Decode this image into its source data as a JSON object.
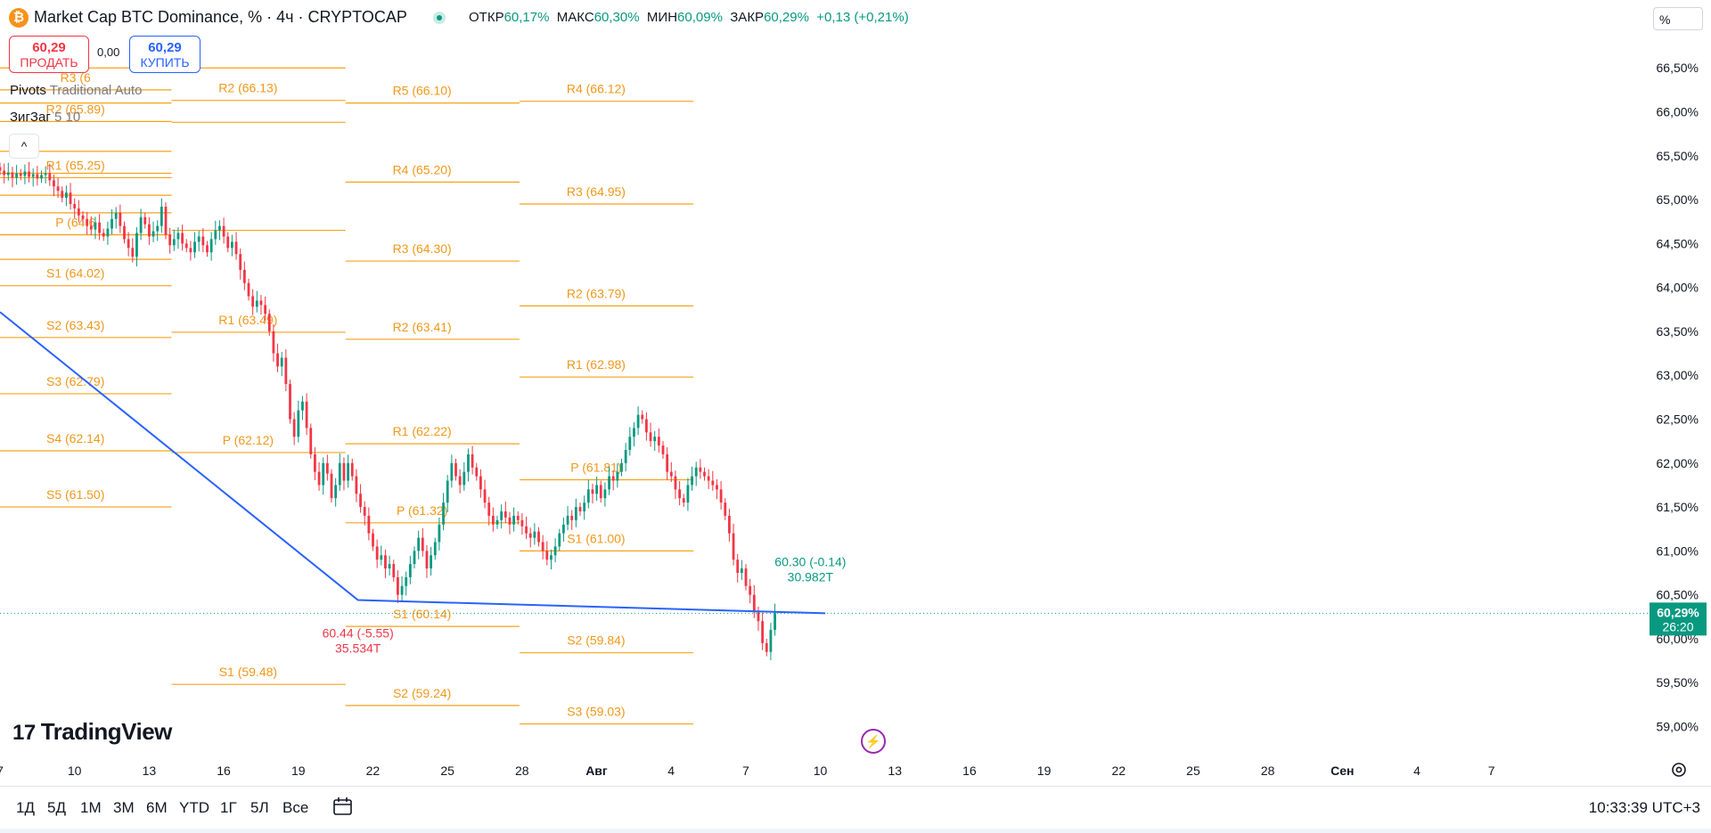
{
  "header": {
    "icon_letter": "₿",
    "title": "Market Cap BTC Dominance, % · 4ч · CRYPTOCAP",
    "ohlc": [
      {
        "label": "ОТКР",
        "value": "60,17%"
      },
      {
        "label": "МАКС",
        "value": "60,30%"
      },
      {
        "label": "МИН",
        "value": "60,09%"
      },
      {
        "label": "ЗАКР",
        "value": "60,29%"
      }
    ],
    "change": "+0,13 (+0,21%)",
    "scale_mode": "%"
  },
  "trade": {
    "sell_price": "60,29",
    "sell_label": "ПРОДАТЬ",
    "spread": "0,00",
    "buy_price": "60,29",
    "buy_label": "КУПИТЬ"
  },
  "indicators": {
    "pivots_name": "Pivots",
    "pivots_params": "Traditional Auto",
    "zigzag_name": "ЗигЗаг",
    "zigzag_params": "5 10",
    "collapse_icon": "^"
  },
  "logo": "TradingView",
  "timeframes": [
    "1Д",
    "5Д",
    "1М",
    "3М",
    "6М",
    "YTD",
    "1Г",
    "5Л",
    "Все"
  ],
  "clock": "10:33:39 UTC+3",
  "colors": {
    "up": "#089981",
    "down": "#f23645",
    "pivot": "#f7a21b",
    "pivot_text": "#f0981a",
    "zigzag": "#2962ff",
    "label_bg": "#089981"
  },
  "chart_data": {
    "type": "candlestick",
    "y_axis": {
      "ylim": [
        58.65,
        67.05
      ],
      "ticks": [
        59.0,
        59.5,
        60.0,
        60.5,
        61.0,
        61.5,
        62.0,
        62.5,
        63.0,
        63.5,
        64.0,
        64.5,
        65.0,
        65.5,
        66.0,
        66.5
      ],
      "tick_labels": [
        "59,00%",
        "59,50%",
        "60,00%",
        "60,50%",
        "61,00%",
        "61,50%",
        "62,00%",
        "62,50%",
        "63,00%",
        "63,50%",
        "64,00%",
        "64,50%",
        "65,00%",
        "65,50%",
        "66,00%",
        "66,50%"
      ]
    },
    "x_axis": {
      "unit": "day",
      "xlim": [
        7.0,
        73.5
      ],
      "ticks": [
        {
          "d": 7,
          "label": "7"
        },
        {
          "d": 10,
          "label": "10"
        },
        {
          "d": 13,
          "label": "13"
        },
        {
          "d": 16,
          "label": "16"
        },
        {
          "d": 19,
          "label": "19"
        },
        {
          "d": 22,
          "label": "22"
        },
        {
          "d": 25,
          "label": "25"
        },
        {
          "d": 28,
          "label": "28"
        },
        {
          "d": 31,
          "label": "Авг"
        },
        {
          "d": 34,
          "label": "4"
        },
        {
          "d": 37,
          "label": "7"
        },
        {
          "d": 40,
          "label": "10"
        },
        {
          "d": 43,
          "label": "13"
        },
        {
          "d": 46,
          "label": "16"
        },
        {
          "d": 49,
          "label": "19"
        },
        {
          "d": 52,
          "label": "22"
        },
        {
          "d": 55,
          "label": "25"
        },
        {
          "d": 58,
          "label": "28"
        },
        {
          "d": 61,
          "label": "Сен"
        },
        {
          "d": 64,
          "label": "4"
        },
        {
          "d": 67,
          "label": "7"
        }
      ]
    },
    "last_price": {
      "value": 60.29,
      "label": "60,29%",
      "countdown": "26:20"
    },
    "pivots": [
      {
        "x0": 7.0,
        "x1": 13.9,
        "levels": [
          {
            "t": "",
            "v": 66.5
          },
          {
            "t": "R3 (6",
            "v": 66.25
          },
          {
            "t": "",
            "v": 66.1
          },
          {
            "t": "R2 (65.89)",
            "v": 65.89
          },
          {
            "t": "",
            "v": 65.55
          },
          {
            "t": "",
            "v": 65.3
          },
          {
            "t": "R1 (65.25)",
            "v": 65.25
          },
          {
            "t": "",
            "v": 65.05
          },
          {
            "t": "",
            "v": 64.85
          },
          {
            "t": "",
            "v": 64.6
          },
          {
            "t": "P (64.6",
            "v": 64.6
          },
          {
            "t": "",
            "v": 64.32
          },
          {
            "t": "S1 (64.02)",
            "v": 64.02
          },
          {
            "t": "S2 (63.43)",
            "v": 63.43
          },
          {
            "t": "S3 (62.79)",
            "v": 62.79
          },
          {
            "t": "S4 (62.14)",
            "v": 62.14
          },
          {
            "t": "S5 (61.50)",
            "v": 61.5
          }
        ]
      },
      {
        "x0": 13.9,
        "x1": 20.9,
        "levels": [
          {
            "t": "",
            "v": 66.5
          },
          {
            "t": "R2 (66.13)",
            "v": 66.13
          },
          {
            "t": "",
            "v": 65.88
          },
          {
            "t": "",
            "v": 64.65
          },
          {
            "t": "R1 (63.49)",
            "v": 63.49
          },
          {
            "t": "P (62.12)",
            "v": 62.12
          },
          {
            "t": "S1 (59.48)",
            "v": 59.48
          }
        ]
      },
      {
        "x0": 20.9,
        "x1": 27.9,
        "levels": [
          {
            "t": "R5 (66.10)",
            "v": 66.1
          },
          {
            "t": "R4 (65.20)",
            "v": 65.2
          },
          {
            "t": "R3 (64.30)",
            "v": 64.3
          },
          {
            "t": "R2 (63.41)",
            "v": 63.41
          },
          {
            "t": "R1 (62.22)",
            "v": 62.22
          },
          {
            "t": "P (61.32)",
            "v": 61.32
          },
          {
            "t": "S1 (60.14)",
            "v": 60.14
          },
          {
            "t": "S2 (59.24)",
            "v": 59.24
          }
        ]
      },
      {
        "x0": 27.9,
        "x1": 34.9,
        "levels": [
          {
            "t": "R4 (66.12)",
            "v": 66.12
          },
          {
            "t": "R3 (64.95)",
            "v": 64.95
          },
          {
            "t": "R2 (63.79)",
            "v": 63.79
          },
          {
            "t": "R1 (62.98)",
            "v": 62.98
          },
          {
            "t": "P (61.81)",
            "v": 61.81
          },
          {
            "t": "S1 (61.00)",
            "v": 61.0
          },
          {
            "t": "S2 (59.84)",
            "v": 59.84
          },
          {
            "t": "S3 (59.03)",
            "v": 59.03
          }
        ]
      }
    ],
    "zigzag": [
      {
        "d": 7.0,
        "v": 63.72
      },
      {
        "d": 21.4,
        "v": 60.44
      },
      {
        "d": 40.2,
        "v": 60.29
      }
    ],
    "zigzag_labels": [
      {
        "d": 21.4,
        "v": 60.44,
        "line1": "60.44 (-5.55)",
        "line2": "35.534T",
        "color": "#f23645",
        "below": true
      },
      {
        "d": 39.6,
        "v": 60.3,
        "line1": "60.30 (-0.14)",
        "line2": "30.982T",
        "color": "#089981",
        "below": false
      }
    ],
    "candles": {
      "start_day": 7.0,
      "step_day": 0.1667,
      "close": [
        65.33,
        65.28,
        65.31,
        65.25,
        65.3,
        65.27,
        65.32,
        65.26,
        65.29,
        65.24,
        65.28,
        65.3,
        65.22,
        65.15,
        65.1,
        65.02,
        65.08,
        64.95,
        64.9,
        64.82,
        64.78,
        64.7,
        64.66,
        64.74,
        64.62,
        64.58,
        64.67,
        64.78,
        64.85,
        64.7,
        64.55,
        64.45,
        64.35,
        64.62,
        64.8,
        64.72,
        64.58,
        64.64,
        64.7,
        64.92,
        64.6,
        64.48,
        64.55,
        64.62,
        64.5,
        64.45,
        64.4,
        64.52,
        64.58,
        64.48,
        64.4,
        64.55,
        64.65,
        64.7,
        64.58,
        64.45,
        64.52,
        64.38,
        64.2,
        64.05,
        63.9,
        63.78,
        63.85,
        63.8,
        63.7,
        63.5,
        63.25,
        63.1,
        63.2,
        62.9,
        62.5,
        62.3,
        62.6,
        62.7,
        62.4,
        62.1,
        61.9,
        61.75,
        62.0,
        61.88,
        61.6,
        61.75,
        62.0,
        61.8,
        62.0,
        61.85,
        61.65,
        61.5,
        61.4,
        61.2,
        61.05,
        60.9,
        60.95,
        60.8,
        60.85,
        60.7,
        60.5,
        60.6,
        60.7,
        60.85,
        61.0,
        61.15,
        61.0,
        60.8,
        60.95,
        61.1,
        61.3,
        61.55,
        61.8,
        62.0,
        61.85,
        61.75,
        61.9,
        62.1,
        61.95,
        61.85,
        61.7,
        61.55,
        61.4,
        61.3,
        61.35,
        61.45,
        61.38,
        61.3,
        61.4,
        61.35,
        61.28,
        61.2,
        61.15,
        61.22,
        61.1,
        61.0,
        60.9,
        60.95,
        61.05,
        61.2,
        61.3,
        61.4,
        61.35,
        61.5,
        61.45,
        61.55,
        61.7,
        61.65,
        61.75,
        61.6,
        61.7,
        61.85,
        61.8,
        61.9,
        62.0,
        62.15,
        62.3,
        62.4,
        62.55,
        62.5,
        62.35,
        62.25,
        62.3,
        62.2,
        62.1,
        61.9,
        61.85,
        61.7,
        61.6,
        61.55,
        61.75,
        61.85,
        61.95,
        61.9,
        61.85,
        61.8,
        61.75,
        61.7,
        61.55,
        61.4,
        61.2,
        60.9,
        60.75,
        60.8,
        60.6,
        60.5,
        60.3,
        60.2,
        59.95,
        59.85,
        60.1,
        60.29
      ]
    }
  }
}
